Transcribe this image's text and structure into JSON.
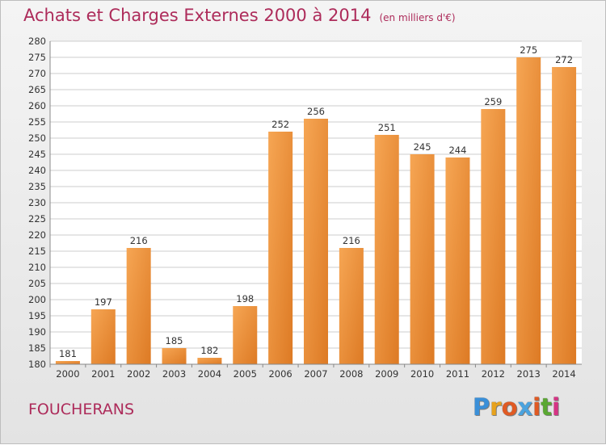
{
  "header": {
    "title": "Achats et Charges Externes 2000 à 2014",
    "subtitle": "(en milliers d'€)"
  },
  "footer": {
    "location": "FOUCHERANS",
    "logo_text": "Proxiti"
  },
  "colors": {
    "title": "#ad2b5a",
    "bar_light": "#f6a654",
    "bar_dark": "#dd7a24",
    "grid": "#cccccc"
  },
  "chart_data": {
    "type": "bar",
    "categories": [
      "2000",
      "2001",
      "2002",
      "2003",
      "2004",
      "2005",
      "2006",
      "2007",
      "2008",
      "2009",
      "2010",
      "2011",
      "2012",
      "2013",
      "2014"
    ],
    "values": [
      181,
      197,
      216,
      185,
      182,
      198,
      252,
      256,
      216,
      251,
      245,
      244,
      259,
      275,
      272
    ],
    "ylim": [
      180,
      280
    ],
    "yticks": [
      180,
      185,
      190,
      195,
      200,
      205,
      210,
      215,
      220,
      225,
      230,
      235,
      240,
      245,
      250,
      255,
      260,
      265,
      270,
      275,
      280
    ],
    "grid": true,
    "data_labels": true
  }
}
